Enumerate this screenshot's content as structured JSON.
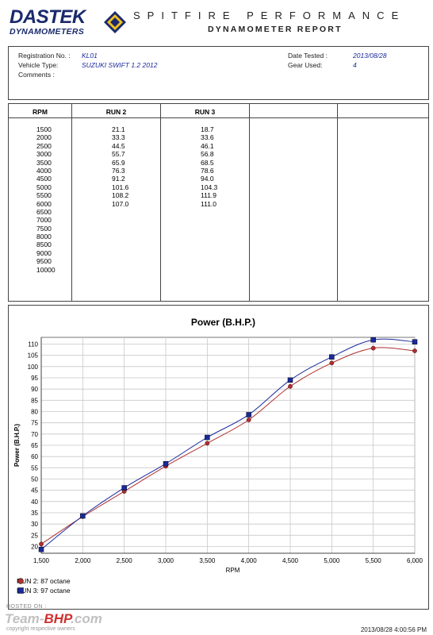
{
  "header": {
    "logo_top": "DASTEK",
    "logo_bottom": "DYNAMOMETERS",
    "title": "SPITFIRE PERFORMANCE",
    "subtitle": "DYNAMOMETER REPORT"
  },
  "info": {
    "registration_label": "Registration No. :",
    "registration_value": "KL01",
    "vehicle_label": "Vehicle Type:",
    "vehicle_value": "SUZUKI SWIFT 1.2 2012",
    "comments_label": "Comments :",
    "date_label": "Date Tested :",
    "date_value": "2013/08/28",
    "gear_label": "Gear Used:",
    "gear_value": "4"
  },
  "table": {
    "headers": [
      "RPM",
      "RUN 2",
      "RUN 3",
      "",
      ""
    ],
    "rpm": [
      "1500",
      "2000",
      "2500",
      "3000",
      "3500",
      "4000",
      "4500",
      "5000",
      "5500",
      "6000",
      "6500",
      "7000",
      "7500",
      "8000",
      "8500",
      "9000",
      "9500",
      "10000"
    ],
    "run2": [
      "21.1",
      "33.3",
      "44.5",
      "55.7",
      "65.9",
      "76.3",
      "91.2",
      "101.6",
      "108.2",
      "107.0"
    ],
    "run3": [
      "18.7",
      "33.6",
      "46.1",
      "56.8",
      "68.5",
      "78.6",
      "94.0",
      "104.3",
      "111.9",
      "111.0"
    ]
  },
  "chart_data": {
    "type": "line",
    "title": "Power (B.H.P.)",
    "xlabel": "RPM",
    "ylabel": "Power (B.H.P.)",
    "x": [
      1500,
      2000,
      2500,
      3000,
      3500,
      4000,
      4500,
      5000,
      5500,
      6000
    ],
    "x_tick_labels": [
      "1,500",
      "2,000",
      "2,500",
      "3,000",
      "3,500",
      "4,000",
      "4,500",
      "5,000",
      "5,500",
      "6,000"
    ],
    "y_ticks": [
      20,
      25,
      30,
      35,
      40,
      45,
      50,
      55,
      60,
      65,
      70,
      75,
      80,
      85,
      90,
      95,
      100,
      105,
      110
    ],
    "xlim": [
      1500,
      6000
    ],
    "ylim": [
      17,
      113
    ],
    "grid": true,
    "legend_position": "bottom-left",
    "series": [
      {
        "name": "RUN 2: 87 octane",
        "color": "#b03030",
        "marker": "circle",
        "values": [
          21.1,
          33.3,
          44.5,
          55.7,
          65.9,
          76.3,
          91.2,
          101.6,
          108.2,
          107.0
        ]
      },
      {
        "name": "RUN 3: 97 octane",
        "color": "#1a2a9c",
        "marker": "square",
        "values": [
          18.7,
          33.6,
          46.1,
          56.8,
          68.5,
          78.6,
          94.0,
          104.3,
          111.9,
          111.0
        ]
      }
    ]
  },
  "footer": {
    "hosted_label": "HOSTED ON :",
    "brand_a": "Team-",
    "brand_b": "BHP",
    "brand_c": ".com",
    "copyright": "copyright respective owners",
    "timestamp": "2013/08/28 4:00:56 PM"
  }
}
